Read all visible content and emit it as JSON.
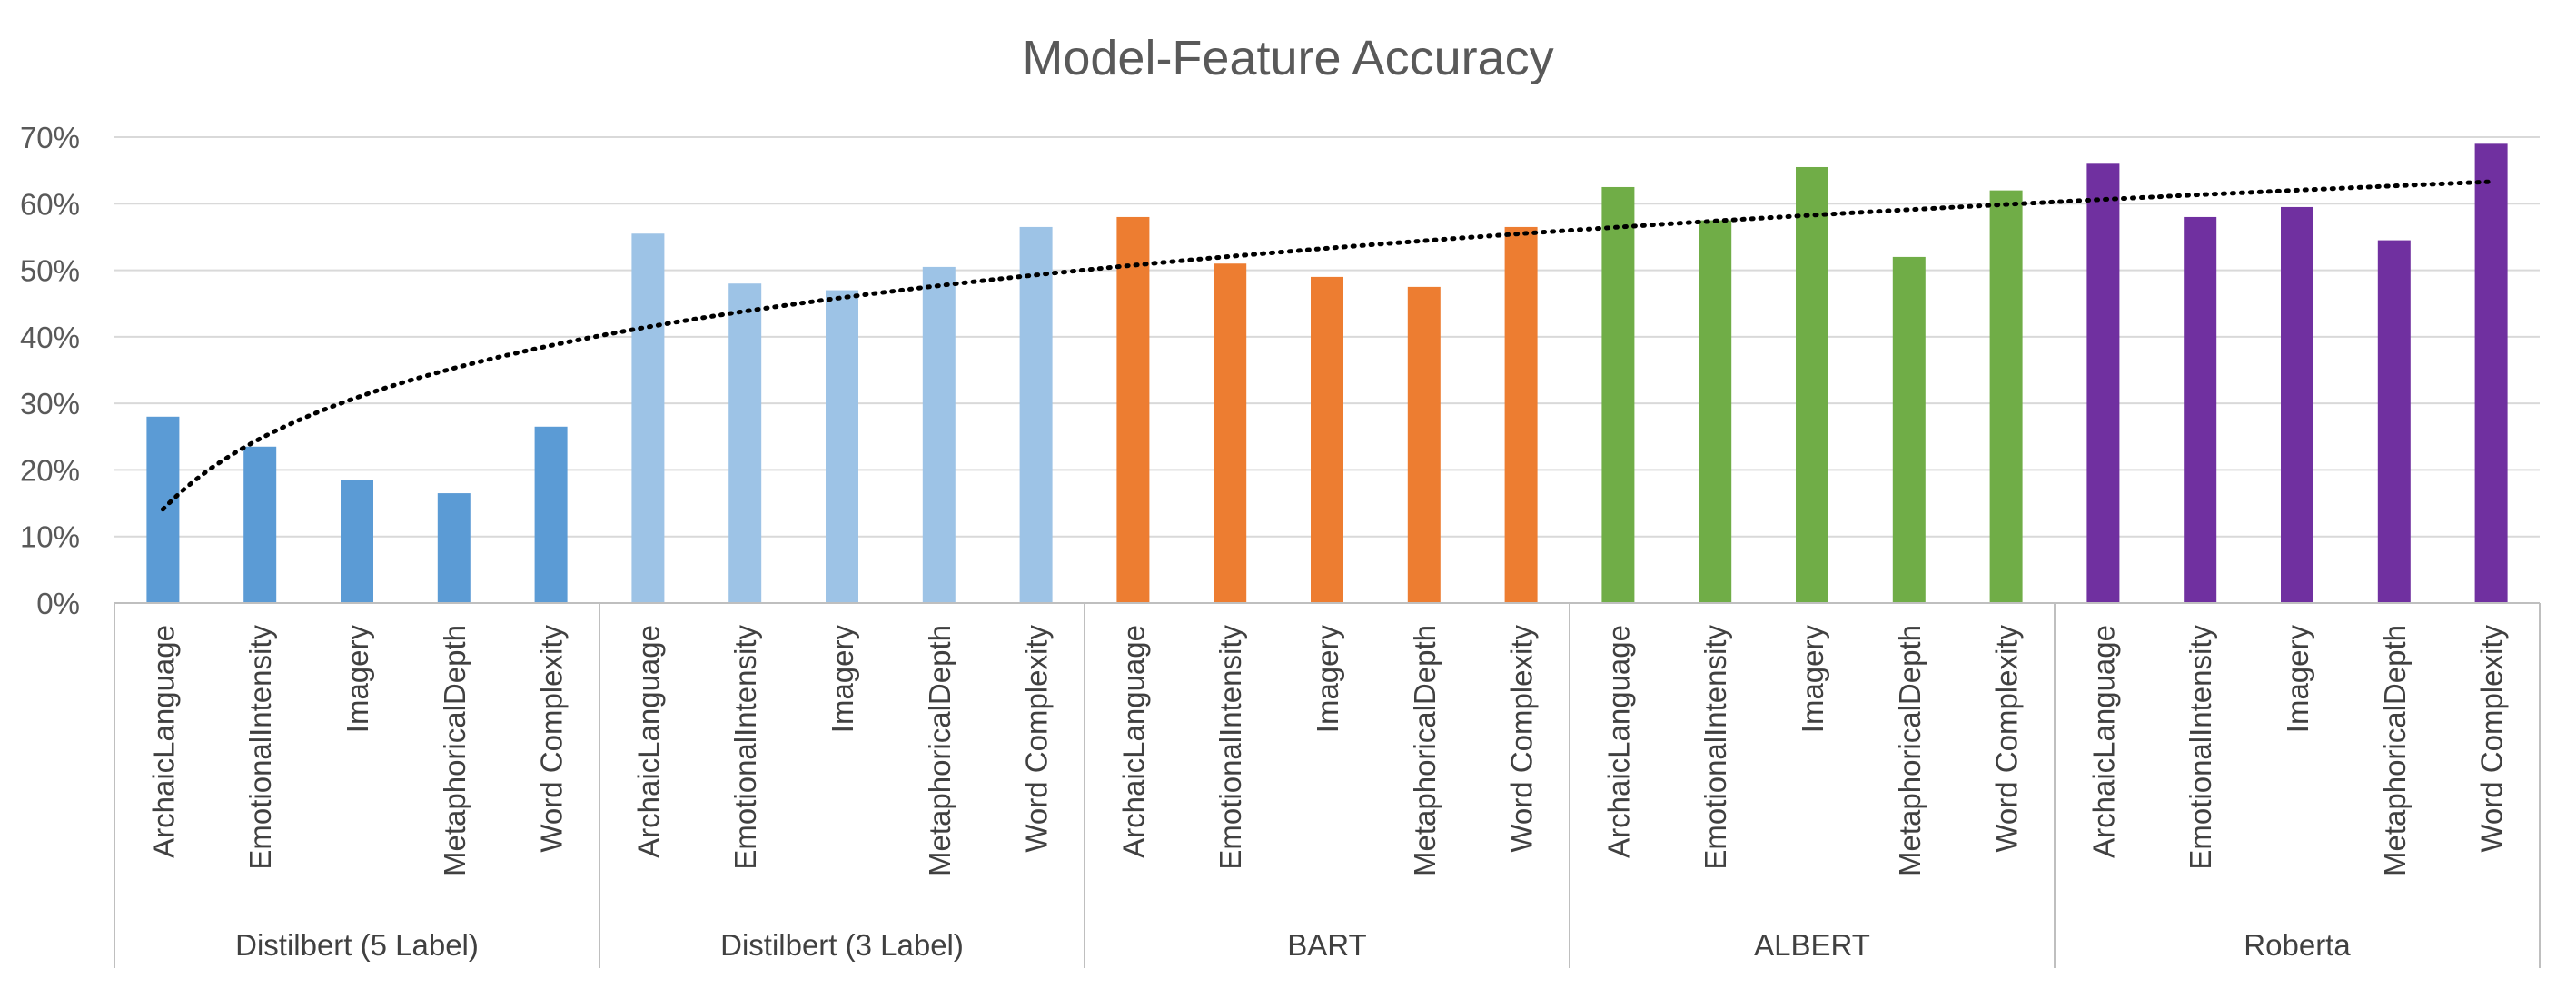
{
  "chart_data": {
    "type": "bar",
    "title": "Model-Feature Accuracy",
    "xlabel": "",
    "ylabel": "",
    "ylim": [
      0,
      0.7
    ],
    "yticks": [
      "0%",
      "10%",
      "20%",
      "30%",
      "40%",
      "50%",
      "60%",
      "70%"
    ],
    "grid": true,
    "legend": "none",
    "trendline": "logarithmic, dotted black",
    "features": [
      "ArchaicLanguage",
      "EmotionalIntensity",
      "Imagery",
      "MetaphoricalDepth",
      "Word Complexity"
    ],
    "groups": [
      {
        "name": "Distilbert (5 Label)",
        "color": "#5B9BD5",
        "values": [
          0.28,
          0.235,
          0.185,
          0.165,
          0.265
        ]
      },
      {
        "name": "Distilbert (3 Label)",
        "color": "#9DC3E6",
        "values": [
          0.555,
          0.48,
          0.47,
          0.505,
          0.565
        ]
      },
      {
        "name": "BART",
        "color": "#ED7D31",
        "values": [
          0.58,
          0.51,
          0.49,
          0.475,
          0.565
        ]
      },
      {
        "name": "ALBERT",
        "color": "#70AD47",
        "values": [
          0.625,
          0.575,
          0.655,
          0.52,
          0.62
        ]
      },
      {
        "name": "Roberta",
        "color": "#7030A0",
        "values": [
          0.66,
          0.58,
          0.595,
          0.545,
          0.69
        ]
      }
    ]
  }
}
